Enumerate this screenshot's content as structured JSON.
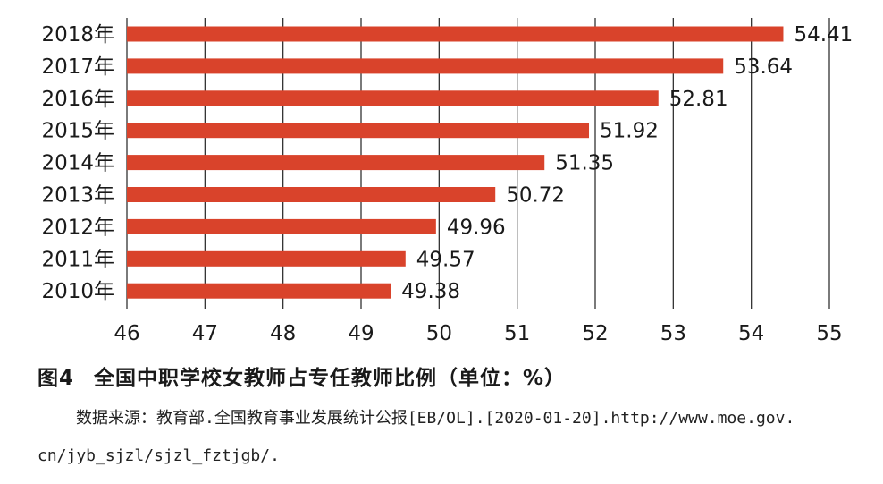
{
  "chart_data": {
    "type": "bar",
    "orientation": "horizontal",
    "categories": [
      "2018年",
      "2017年",
      "2016年",
      "2015年",
      "2014年",
      "2013年",
      "2012年",
      "2011年",
      "2010年"
    ],
    "values": [
      54.41,
      53.64,
      52.81,
      51.92,
      51.35,
      50.72,
      49.96,
      49.57,
      49.38
    ],
    "value_labels": [
      "54.41",
      "53.64",
      "52.81",
      "51.92",
      "51.35",
      "50.72",
      "49.96",
      "49.57",
      "49.38"
    ],
    "xlim": [
      46,
      55
    ],
    "x_ticks": [
      "46",
      "47",
      "48",
      "49",
      "50",
      "51",
      "52",
      "53",
      "54",
      "55"
    ],
    "grid": "vertical",
    "bar_color": "#d9432b"
  },
  "caption": {
    "number": "图4",
    "title": "全国中职学校女教师占专任教师比例（单位：%）"
  },
  "source": {
    "line1": "数据来源：教育部.全国教育事业发展统计公报[EB/OL].[2020-01-20].http://www.moe.gov.",
    "line2": "cn/jyb_sjzl/sjzl_fztjgb/."
  }
}
